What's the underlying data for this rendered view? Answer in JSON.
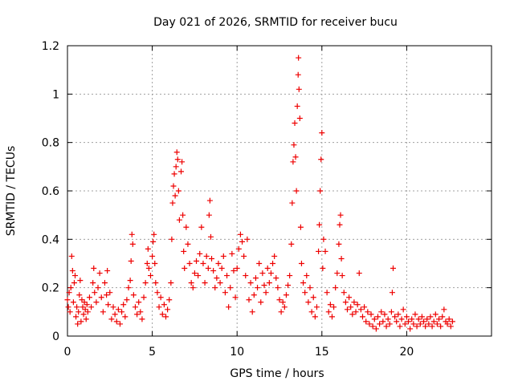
{
  "chart_data": {
    "type": "scatter",
    "title": "Day 021 of 2026, SRMTID for receiver bucu",
    "xlabel": "GPS time / hours",
    "ylabel": "SRMTID / TECUs",
    "xlim": [
      0,
      25
    ],
    "ylim": [
      0,
      1.2
    ],
    "xticks": [
      0,
      5,
      10,
      15,
      20
    ],
    "yticks": [
      0,
      0.2,
      0.4,
      0.6,
      0.8,
      1.0,
      1.2
    ],
    "xtick_labels": [
      "0",
      "5",
      "10",
      "15",
      "20"
    ],
    "ytick_labels": [
      "0",
      "0.2",
      "0.4",
      "0.6",
      "0.8",
      "1",
      "1.2"
    ],
    "grid": true,
    "marker": "+",
    "color": "#ee0000",
    "series": [
      {
        "name": "SRMTID",
        "points": [
          [
            0.0,
            0.15
          ],
          [
            0.05,
            0.12
          ],
          [
            0.1,
            0.18
          ],
          [
            0.15,
            0.1
          ],
          [
            0.2,
            0.2
          ],
          [
            0.25,
            0.33
          ],
          [
            0.3,
            0.27
          ],
          [
            0.35,
            0.14
          ],
          [
            0.4,
            0.22
          ],
          [
            0.45,
            0.25
          ],
          [
            0.5,
            0.08
          ],
          [
            0.55,
            0.12
          ],
          [
            0.6,
            0.05
          ],
          [
            0.65,
            0.1
          ],
          [
            0.7,
            0.17
          ],
          [
            0.75,
            0.23
          ],
          [
            0.8,
            0.06
          ],
          [
            0.85,
            0.15
          ],
          [
            0.9,
            0.12
          ],
          [
            0.95,
            0.09
          ],
          [
            1.0,
            0.14
          ],
          [
            1.05,
            0.11
          ],
          [
            1.1,
            0.07
          ],
          [
            1.15,
            0.13
          ],
          [
            1.2,
            0.1
          ],
          [
            1.3,
            0.16
          ],
          [
            1.4,
            0.12
          ],
          [
            1.5,
            0.22
          ],
          [
            1.55,
            0.28
          ],
          [
            1.6,
            0.18
          ],
          [
            1.7,
            0.14
          ],
          [
            1.8,
            0.2
          ],
          [
            1.9,
            0.26
          ],
          [
            2.0,
            0.16
          ],
          [
            2.1,
            0.1
          ],
          [
            2.2,
            0.22
          ],
          [
            2.3,
            0.17
          ],
          [
            2.35,
            0.27
          ],
          [
            2.4,
            0.13
          ],
          [
            2.5,
            0.18
          ],
          [
            2.6,
            0.07
          ],
          [
            2.7,
            0.12
          ],
          [
            2.8,
            0.09
          ],
          [
            2.9,
            0.06
          ],
          [
            3.0,
            0.11
          ],
          [
            3.1,
            0.05
          ],
          [
            3.2,
            0.1
          ],
          [
            3.3,
            0.13
          ],
          [
            3.4,
            0.08
          ],
          [
            3.5,
            0.15
          ],
          [
            3.6,
            0.2
          ],
          [
            3.7,
            0.23
          ],
          [
            3.75,
            0.31
          ],
          [
            3.8,
            0.42
          ],
          [
            3.85,
            0.38
          ],
          [
            3.9,
            0.17
          ],
          [
            4.0,
            0.12
          ],
          [
            4.1,
            0.09
          ],
          [
            4.2,
            0.14
          ],
          [
            4.3,
            0.1
          ],
          [
            4.4,
            0.07
          ],
          [
            4.5,
            0.16
          ],
          [
            4.6,
            0.22
          ],
          [
            4.7,
            0.3
          ],
          [
            4.75,
            0.36
          ],
          [
            4.8,
            0.28
          ],
          [
            4.9,
            0.25
          ],
          [
            5.0,
            0.33
          ],
          [
            5.05,
            0.39
          ],
          [
            5.1,
            0.42
          ],
          [
            5.15,
            0.3
          ],
          [
            5.2,
            0.22
          ],
          [
            5.3,
            0.18
          ],
          [
            5.4,
            0.12
          ],
          [
            5.5,
            0.16
          ],
          [
            5.6,
            0.09
          ],
          [
            5.7,
            0.13
          ],
          [
            5.8,
            0.08
          ],
          [
            5.9,
            0.11
          ],
          [
            6.0,
            0.15
          ],
          [
            6.1,
            0.22
          ],
          [
            6.15,
            0.4
          ],
          [
            6.2,
            0.55
          ],
          [
            6.25,
            0.62
          ],
          [
            6.3,
            0.67
          ],
          [
            6.35,
            0.58
          ],
          [
            6.4,
            0.7
          ],
          [
            6.45,
            0.76
          ],
          [
            6.5,
            0.73
          ],
          [
            6.55,
            0.6
          ],
          [
            6.6,
            0.48
          ],
          [
            6.7,
            0.68
          ],
          [
            6.75,
            0.72
          ],
          [
            6.8,
            0.5
          ],
          [
            6.85,
            0.35
          ],
          [
            6.9,
            0.28
          ],
          [
            7.0,
            0.45
          ],
          [
            7.1,
            0.38
          ],
          [
            7.2,
            0.3
          ],
          [
            7.3,
            0.22
          ],
          [
            7.4,
            0.2
          ],
          [
            7.5,
            0.26
          ],
          [
            7.6,
            0.31
          ],
          [
            7.7,
            0.25
          ],
          [
            7.8,
            0.34
          ],
          [
            7.9,
            0.45
          ],
          [
            8.0,
            0.3
          ],
          [
            8.1,
            0.22
          ],
          [
            8.2,
            0.33
          ],
          [
            8.3,
            0.28
          ],
          [
            8.35,
            0.5
          ],
          [
            8.4,
            0.56
          ],
          [
            8.45,
            0.41
          ],
          [
            8.5,
            0.32
          ],
          [
            8.6,
            0.27
          ],
          [
            8.7,
            0.2
          ],
          [
            8.8,
            0.24
          ],
          [
            8.9,
            0.3
          ],
          [
            9.0,
            0.22
          ],
          [
            9.1,
            0.28
          ],
          [
            9.2,
            0.33
          ],
          [
            9.3,
            0.18
          ],
          [
            9.4,
            0.25
          ],
          [
            9.5,
            0.12
          ],
          [
            9.6,
            0.2
          ],
          [
            9.7,
            0.34
          ],
          [
            9.8,
            0.27
          ],
          [
            9.9,
            0.16
          ],
          [
            10.0,
            0.28
          ],
          [
            10.1,
            0.36
          ],
          [
            10.2,
            0.42
          ],
          [
            10.3,
            0.39
          ],
          [
            10.4,
            0.33
          ],
          [
            10.5,
            0.25
          ],
          [
            10.6,
            0.4
          ],
          [
            10.7,
            0.15
          ],
          [
            10.8,
            0.22
          ],
          [
            10.9,
            0.1
          ],
          [
            11.0,
            0.17
          ],
          [
            11.1,
            0.24
          ],
          [
            11.2,
            0.2
          ],
          [
            11.3,
            0.3
          ],
          [
            11.4,
            0.14
          ],
          [
            11.5,
            0.26
          ],
          [
            11.6,
            0.21
          ],
          [
            11.7,
            0.18
          ],
          [
            11.8,
            0.28
          ],
          [
            11.9,
            0.22
          ],
          [
            12.0,
            0.26
          ],
          [
            12.1,
            0.3
          ],
          [
            12.2,
            0.33
          ],
          [
            12.3,
            0.24
          ],
          [
            12.4,
            0.2
          ],
          [
            12.5,
            0.15
          ],
          [
            12.6,
            0.1
          ],
          [
            12.7,
            0.14
          ],
          [
            12.8,
            0.12
          ],
          [
            12.9,
            0.17
          ],
          [
            13.0,
            0.21
          ],
          [
            13.1,
            0.25
          ],
          [
            13.2,
            0.38
          ],
          [
            13.25,
            0.55
          ],
          [
            13.3,
            0.72
          ],
          [
            13.35,
            0.79
          ],
          [
            13.4,
            0.88
          ],
          [
            13.45,
            0.74
          ],
          [
            13.5,
            0.6
          ],
          [
            13.55,
            0.95
          ],
          [
            13.6,
            1.08
          ],
          [
            13.62,
            1.15
          ],
          [
            13.65,
            1.02
          ],
          [
            13.7,
            0.9
          ],
          [
            13.75,
            0.45
          ],
          [
            13.8,
            0.3
          ],
          [
            13.9,
            0.22
          ],
          [
            14.0,
            0.18
          ],
          [
            14.1,
            0.25
          ],
          [
            14.2,
            0.14
          ],
          [
            14.3,
            0.2
          ],
          [
            14.4,
            0.1
          ],
          [
            14.5,
            0.16
          ],
          [
            14.6,
            0.08
          ],
          [
            14.7,
            0.12
          ],
          [
            14.8,
            0.35
          ],
          [
            14.85,
            0.46
          ],
          [
            14.9,
            0.6
          ],
          [
            14.95,
            0.73
          ],
          [
            15.0,
            0.84
          ],
          [
            15.05,
            0.28
          ],
          [
            15.1,
            0.4
          ],
          [
            15.2,
            0.35
          ],
          [
            15.3,
            0.18
          ],
          [
            15.4,
            0.1
          ],
          [
            15.5,
            0.13
          ],
          [
            15.6,
            0.08
          ],
          [
            15.7,
            0.12
          ],
          [
            15.8,
            0.2
          ],
          [
            15.9,
            0.26
          ],
          [
            16.0,
            0.38
          ],
          [
            16.05,
            0.46
          ],
          [
            16.1,
            0.5
          ],
          [
            16.15,
            0.32
          ],
          [
            16.2,
            0.25
          ],
          [
            16.3,
            0.18
          ],
          [
            16.4,
            0.14
          ],
          [
            16.5,
            0.11
          ],
          [
            16.6,
            0.16
          ],
          [
            16.7,
            0.12
          ],
          [
            16.8,
            0.09
          ],
          [
            16.9,
            0.14
          ],
          [
            17.0,
            0.1
          ],
          [
            17.1,
            0.13
          ],
          [
            17.2,
            0.26
          ],
          [
            17.3,
            0.11
          ],
          [
            17.4,
            0.08
          ],
          [
            17.5,
            0.12
          ],
          [
            17.6,
            0.06
          ],
          [
            17.7,
            0.1
          ],
          [
            17.8,
            0.05
          ],
          [
            17.9,
            0.09
          ],
          [
            18.0,
            0.04
          ],
          [
            18.1,
            0.07
          ],
          [
            18.2,
            0.03
          ],
          [
            18.3,
            0.08
          ],
          [
            18.4,
            0.05
          ],
          [
            18.5,
            0.1
          ],
          [
            18.6,
            0.06
          ],
          [
            18.7,
            0.09
          ],
          [
            18.8,
            0.04
          ],
          [
            18.9,
            0.07
          ],
          [
            19.0,
            0.05
          ],
          [
            19.1,
            0.1
          ],
          [
            19.15,
            0.18
          ],
          [
            19.2,
            0.28
          ],
          [
            19.3,
            0.08
          ],
          [
            19.4,
            0.06
          ],
          [
            19.5,
            0.09
          ],
          [
            19.6,
            0.04
          ],
          [
            19.7,
            0.07
          ],
          [
            19.8,
            0.11
          ],
          [
            19.9,
            0.05
          ],
          [
            20.0,
            0.08
          ],
          [
            20.1,
            0.06
          ],
          [
            20.2,
            0.03
          ],
          [
            20.3,
            0.07
          ],
          [
            20.4,
            0.05
          ],
          [
            20.5,
            0.09
          ],
          [
            20.6,
            0.04
          ],
          [
            20.7,
            0.07
          ],
          [
            20.8,
            0.05
          ],
          [
            20.9,
            0.08
          ],
          [
            21.0,
            0.06
          ],
          [
            21.1,
            0.04
          ],
          [
            21.2,
            0.07
          ],
          [
            21.3,
            0.05
          ],
          [
            21.4,
            0.08
          ],
          [
            21.5,
            0.04
          ],
          [
            21.6,
            0.06
          ],
          [
            21.7,
            0.09
          ],
          [
            21.8,
            0.05
          ],
          [
            21.9,
            0.07
          ],
          [
            22.0,
            0.04
          ],
          [
            22.1,
            0.08
          ],
          [
            22.2,
            0.11
          ],
          [
            22.3,
            0.06
          ],
          [
            22.4,
            0.05
          ],
          [
            22.5,
            0.07
          ],
          [
            22.6,
            0.04
          ],
          [
            22.7,
            0.06
          ]
        ]
      }
    ]
  }
}
